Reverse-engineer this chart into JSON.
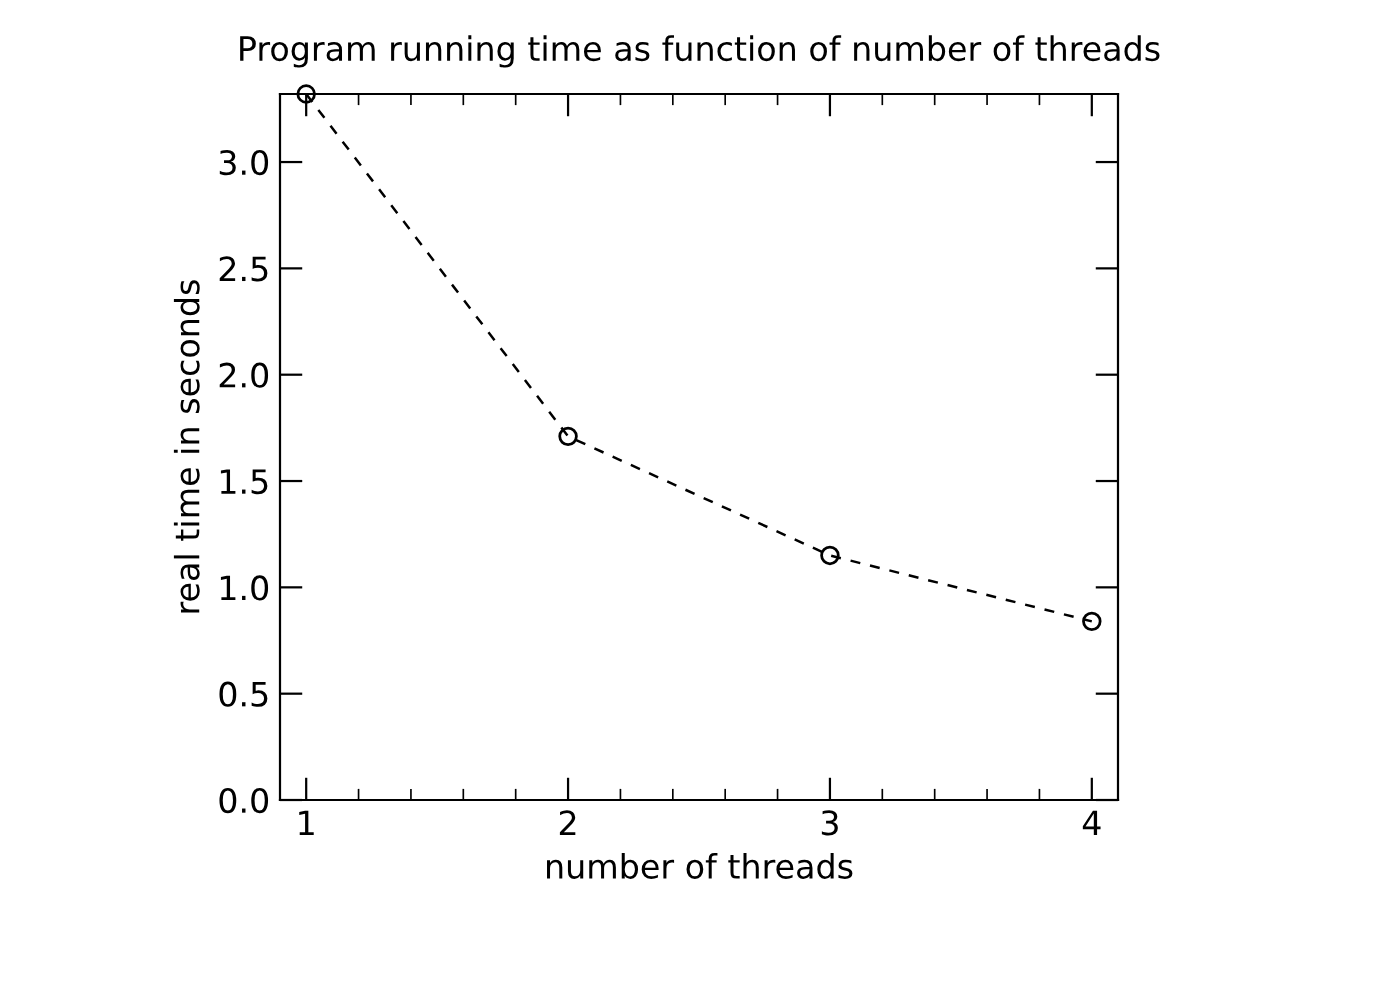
{
  "chart_data": {
    "type": "line",
    "title": "Program running time as function of number of threads",
    "xlabel": "number of threads",
    "ylabel": "real time in seconds",
    "x": [
      1,
      2,
      3,
      4
    ],
    "series": [
      {
        "color": "#000000",
        "values": [
          3.32,
          1.71,
          1.15,
          0.84
        ]
      }
    ],
    "xlim": [
      0.9,
      4.1
    ],
    "xticks": [
      1,
      2,
      3,
      4
    ],
    "ylim": [
      0,
      3.32
    ],
    "yticks": [
      {
        "value": 0,
        "label": "0.0"
      },
      {
        "value": 0.5,
        "label": "0.5"
      },
      {
        "value": 1,
        "label": "1.0"
      },
      {
        "value": 1.5,
        "label": "1.5"
      },
      {
        "value": 2,
        "label": "2.0"
      },
      {
        "value": 2.5,
        "label": "2.5"
      },
      {
        "value": 3,
        "label": "3.0"
      }
    ],
    "marker": "circle",
    "line_style": "dashed"
  }
}
